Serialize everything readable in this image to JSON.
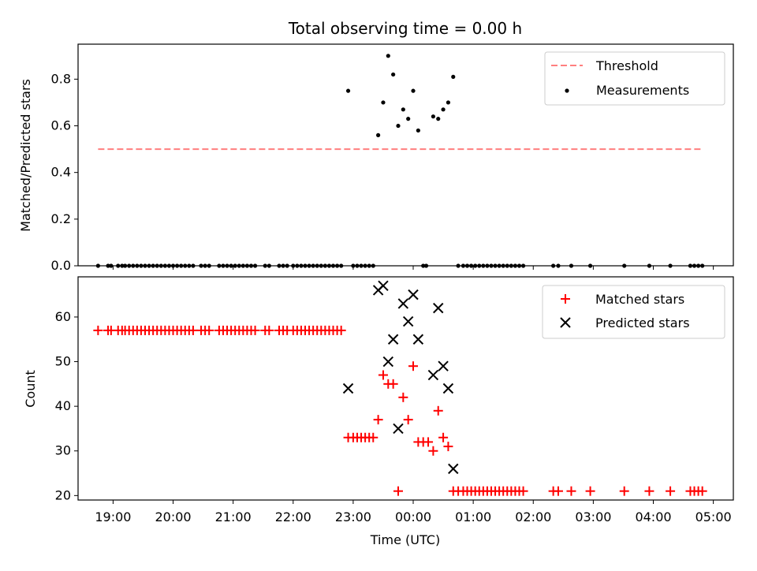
{
  "chart_data": [
    {
      "type": "scatter",
      "title": "Total observing time = 0.00 h",
      "xlabel": "",
      "ylabel": "Matched/Predicted stars",
      "xlim": [
        "18:25",
        "05:20"
      ],
      "ylim": [
        0,
        0.95
      ],
      "y_ticks": [
        0.0,
        0.2,
        0.4,
        0.6,
        0.8
      ],
      "y_tick_labels": [
        "0.0",
        "0.2",
        "0.4",
        "0.6",
        "0.8"
      ],
      "legend_position": "top-right",
      "threshold": {
        "name": "Threshold",
        "value": 0.5,
        "x_range": [
          "18:45",
          "04:50"
        ],
        "color": "#ff7f7f",
        "style": "dashed"
      },
      "series": [
        {
          "name": "Measurements",
          "color": "#000000",
          "marker": "dot",
          "points": [
            [
              "18:45",
              0
            ],
            [
              "18:55",
              0
            ],
            [
              "18:58",
              0
            ],
            [
              "19:05",
              0
            ],
            [
              "19:09",
              0
            ],
            [
              "19:12",
              0
            ],
            [
              "19:16",
              0
            ],
            [
              "19:20",
              0
            ],
            [
              "19:24",
              0
            ],
            [
              "19:28",
              0
            ],
            [
              "19:32",
              0
            ],
            [
              "19:36",
              0
            ],
            [
              "19:40",
              0
            ],
            [
              "19:44",
              0
            ],
            [
              "19:48",
              0
            ],
            [
              "19:52",
              0
            ],
            [
              "19:56",
              0
            ],
            [
              "20:00",
              0
            ],
            [
              "20:04",
              0
            ],
            [
              "20:08",
              0
            ],
            [
              "20:12",
              0
            ],
            [
              "20:16",
              0
            ],
            [
              "20:20",
              0
            ],
            [
              "20:28",
              0
            ],
            [
              "20:32",
              0
            ],
            [
              "20:36",
              0
            ],
            [
              "20:46",
              0
            ],
            [
              "20:50",
              0
            ],
            [
              "20:54",
              0
            ],
            [
              "20:58",
              0
            ],
            [
              "21:02",
              0
            ],
            [
              "21:06",
              0
            ],
            [
              "21:10",
              0
            ],
            [
              "21:14",
              0
            ],
            [
              "21:18",
              0
            ],
            [
              "21:22",
              0
            ],
            [
              "21:32",
              0
            ],
            [
              "21:36",
              0
            ],
            [
              "21:46",
              0
            ],
            [
              "21:50",
              0
            ],
            [
              "21:54",
              0
            ],
            [
              "22:00",
              0
            ],
            [
              "22:04",
              0
            ],
            [
              "22:08",
              0
            ],
            [
              "22:12",
              0
            ],
            [
              "22:16",
              0
            ],
            [
              "22:20",
              0
            ],
            [
              "22:24",
              0
            ],
            [
              "22:28",
              0
            ],
            [
              "22:32",
              0
            ],
            [
              "22:36",
              0
            ],
            [
              "22:40",
              0
            ],
            [
              "22:44",
              0
            ],
            [
              "22:48",
              0
            ],
            [
              "22:55",
              0.75
            ],
            [
              "23:00",
              0
            ],
            [
              "23:04",
              0
            ],
            [
              "23:08",
              0
            ],
            [
              "23:12",
              0
            ],
            [
              "23:16",
              0
            ],
            [
              "23:20",
              0
            ],
            [
              "23:25",
              0.56
            ],
            [
              "23:30",
              0.7
            ],
            [
              "23:35",
              0.9
            ],
            [
              "23:40",
              0.82
            ],
            [
              "23:45",
              0.6
            ],
            [
              "23:50",
              0.67
            ],
            [
              "23:55",
              0.63
            ],
            [
              "00:00",
              0.75
            ],
            [
              "00:05",
              0.58
            ],
            [
              "00:10",
              0
            ],
            [
              "00:13",
              0
            ],
            [
              "00:20",
              0.64
            ],
            [
              "00:25",
              0.63
            ],
            [
              "00:30",
              0.67
            ],
            [
              "00:35",
              0.7
            ],
            [
              "00:40",
              0.81
            ],
            [
              "00:45",
              0
            ],
            [
              "00:50",
              0
            ],
            [
              "00:54",
              0
            ],
            [
              "00:58",
              0
            ],
            [
              "01:02",
              0
            ],
            [
              "01:06",
              0
            ],
            [
              "01:10",
              0
            ],
            [
              "01:14",
              0
            ],
            [
              "01:18",
              0
            ],
            [
              "01:22",
              0
            ],
            [
              "01:26",
              0
            ],
            [
              "01:30",
              0
            ],
            [
              "01:34",
              0
            ],
            [
              "01:38",
              0
            ],
            [
              "01:42",
              0
            ],
            [
              "01:46",
              0
            ],
            [
              "01:50",
              0
            ],
            [
              "02:20",
              0
            ],
            [
              "02:25",
              0
            ],
            [
              "02:38",
              0
            ],
            [
              "02:57",
              0
            ],
            [
              "03:31",
              0
            ],
            [
              "03:56",
              0
            ],
            [
              "04:17",
              0
            ],
            [
              "04:37",
              0
            ],
            [
              "04:41",
              0
            ],
            [
              "04:45",
              0
            ],
            [
              "04:49",
              0
            ]
          ]
        }
      ]
    },
    {
      "type": "scatter",
      "title": "",
      "xlabel": "Time (UTC)",
      "ylabel": "Count",
      "xlim": [
        "18:25",
        "05:20"
      ],
      "ylim": [
        19,
        69
      ],
      "y_ticks": [
        20,
        30,
        40,
        50,
        60
      ],
      "y_tick_labels": [
        "20",
        "30",
        "40",
        "50",
        "60"
      ],
      "x_ticks": [
        "19:00",
        "20:00",
        "21:00",
        "22:00",
        "23:00",
        "00:00",
        "01:00",
        "02:00",
        "03:00",
        "04:00",
        "05:00"
      ],
      "legend_position": "top-right",
      "series": [
        {
          "name": "Matched stars",
          "color": "#ff0000",
          "marker": "plus",
          "points": [
            [
              "18:45",
              57
            ],
            [
              "18:55",
              57
            ],
            [
              "18:58",
              57
            ],
            [
              "19:05",
              57
            ],
            [
              "19:09",
              57
            ],
            [
              "19:12",
              57
            ],
            [
              "19:16",
              57
            ],
            [
              "19:20",
              57
            ],
            [
              "19:24",
              57
            ],
            [
              "19:28",
              57
            ],
            [
              "19:32",
              57
            ],
            [
              "19:36",
              57
            ],
            [
              "19:40",
              57
            ],
            [
              "19:44",
              57
            ],
            [
              "19:48",
              57
            ],
            [
              "19:52",
              57
            ],
            [
              "19:56",
              57
            ],
            [
              "20:00",
              57
            ],
            [
              "20:04",
              57
            ],
            [
              "20:08",
              57
            ],
            [
              "20:12",
              57
            ],
            [
              "20:16",
              57
            ],
            [
              "20:20",
              57
            ],
            [
              "20:28",
              57
            ],
            [
              "20:32",
              57
            ],
            [
              "20:36",
              57
            ],
            [
              "20:46",
              57
            ],
            [
              "20:50",
              57
            ],
            [
              "20:54",
              57
            ],
            [
              "20:58",
              57
            ],
            [
              "21:02",
              57
            ],
            [
              "21:06",
              57
            ],
            [
              "21:10",
              57
            ],
            [
              "21:14",
              57
            ],
            [
              "21:18",
              57
            ],
            [
              "21:22",
              57
            ],
            [
              "21:32",
              57
            ],
            [
              "21:36",
              57
            ],
            [
              "21:46",
              57
            ],
            [
              "21:50",
              57
            ],
            [
              "21:54",
              57
            ],
            [
              "22:00",
              57
            ],
            [
              "22:04",
              57
            ],
            [
              "22:08",
              57
            ],
            [
              "22:12",
              57
            ],
            [
              "22:16",
              57
            ],
            [
              "22:20",
              57
            ],
            [
              "22:24",
              57
            ],
            [
              "22:28",
              57
            ],
            [
              "22:32",
              57
            ],
            [
              "22:36",
              57
            ],
            [
              "22:40",
              57
            ],
            [
              "22:44",
              57
            ],
            [
              "22:48",
              57
            ],
            [
              "22:55",
              33
            ],
            [
              "23:00",
              33
            ],
            [
              "23:04",
              33
            ],
            [
              "23:08",
              33
            ],
            [
              "23:12",
              33
            ],
            [
              "23:16",
              33
            ],
            [
              "23:20",
              33
            ],
            [
              "23:25",
              37
            ],
            [
              "23:30",
              47
            ],
            [
              "23:35",
              45
            ],
            [
              "23:40",
              45
            ],
            [
              "23:45",
              21
            ],
            [
              "23:50",
              42
            ],
            [
              "23:55",
              37
            ],
            [
              "00:00",
              49
            ],
            [
              "00:05",
              32
            ],
            [
              "00:10",
              32
            ],
            [
              "00:15",
              32
            ],
            [
              "00:20",
              30
            ],
            [
              "00:25",
              39
            ],
            [
              "00:30",
              33
            ],
            [
              "00:35",
              31
            ],
            [
              "00:40",
              21
            ],
            [
              "00:45",
              21
            ],
            [
              "00:50",
              21
            ],
            [
              "00:54",
              21
            ],
            [
              "00:58",
              21
            ],
            [
              "01:02",
              21
            ],
            [
              "01:06",
              21
            ],
            [
              "01:10",
              21
            ],
            [
              "01:14",
              21
            ],
            [
              "01:18",
              21
            ],
            [
              "01:22",
              21
            ],
            [
              "01:26",
              21
            ],
            [
              "01:30",
              21
            ],
            [
              "01:34",
              21
            ],
            [
              "01:38",
              21
            ],
            [
              "01:42",
              21
            ],
            [
              "01:46",
              21
            ],
            [
              "01:50",
              21
            ],
            [
              "02:20",
              21
            ],
            [
              "02:25",
              21
            ],
            [
              "02:38",
              21
            ],
            [
              "02:57",
              21
            ],
            [
              "03:31",
              21
            ],
            [
              "03:56",
              21
            ],
            [
              "04:17",
              21
            ],
            [
              "04:37",
              21
            ],
            [
              "04:41",
              21
            ],
            [
              "04:45",
              21
            ],
            [
              "04:49",
              21
            ]
          ]
        },
        {
          "name": "Predicted stars",
          "color": "#000000",
          "marker": "x",
          "points": [
            [
              "22:55",
              44
            ],
            [
              "23:25",
              66
            ],
            [
              "23:30",
              67
            ],
            [
              "23:35",
              50
            ],
            [
              "23:40",
              55
            ],
            [
              "23:45",
              35
            ],
            [
              "23:50",
              63
            ],
            [
              "23:55",
              59
            ],
            [
              "00:00",
              65
            ],
            [
              "00:05",
              55
            ],
            [
              "00:20",
              47
            ],
            [
              "00:25",
              62
            ],
            [
              "00:30",
              49
            ],
            [
              "00:35",
              44
            ],
            [
              "00:40",
              26
            ]
          ]
        }
      ]
    }
  ]
}
